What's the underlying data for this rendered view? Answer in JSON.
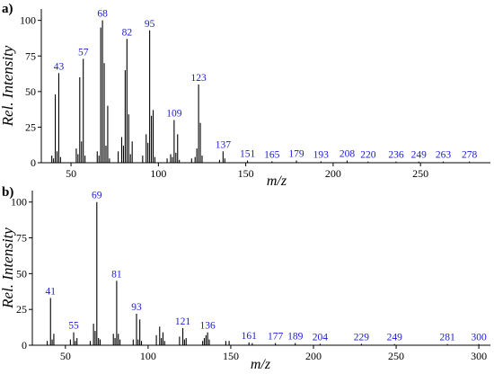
{
  "chart_data": [
    {
      "panel": "a)",
      "type": "bar",
      "ylabel": "Rel. Intensity",
      "xlabel": "m/z",
      "xlim": [
        33,
        290
      ],
      "ylim": [
        0,
        108
      ],
      "xticks": [
        50,
        100,
        150,
        200,
        250
      ],
      "yticks": [
        0,
        25,
        50,
        75,
        100
      ],
      "grid": false,
      "peaks": [
        {
          "x": 39,
          "y": 5
        },
        {
          "x": 40,
          "y": 3
        },
        {
          "x": 41,
          "y": 48
        },
        {
          "x": 42,
          "y": 8
        },
        {
          "x": 43,
          "y": 63
        },
        {
          "x": 44,
          "y": 4
        },
        {
          "x": 53,
          "y": 10
        },
        {
          "x": 54,
          "y": 6
        },
        {
          "x": 55,
          "y": 60
        },
        {
          "x": 56,
          "y": 15
        },
        {
          "x": 57,
          "y": 73
        },
        {
          "x": 58,
          "y": 5
        },
        {
          "x": 65,
          "y": 8
        },
        {
          "x": 66,
          "y": 5
        },
        {
          "x": 67,
          "y": 95
        },
        {
          "x": 68,
          "y": 100
        },
        {
          "x": 69,
          "y": 70
        },
        {
          "x": 70,
          "y": 12
        },
        {
          "x": 71,
          "y": 40
        },
        {
          "x": 72,
          "y": 3
        },
        {
          "x": 77,
          "y": 8
        },
        {
          "x": 79,
          "y": 18
        },
        {
          "x": 80,
          "y": 12
        },
        {
          "x": 81,
          "y": 65
        },
        {
          "x": 82,
          "y": 87
        },
        {
          "x": 83,
          "y": 34
        },
        {
          "x": 84,
          "y": 6
        },
        {
          "x": 85,
          "y": 15
        },
        {
          "x": 91,
          "y": 5
        },
        {
          "x": 93,
          "y": 20
        },
        {
          "x": 94,
          "y": 14
        },
        {
          "x": 95,
          "y": 93
        },
        {
          "x": 96,
          "y": 33
        },
        {
          "x": 97,
          "y": 37
        },
        {
          "x": 98,
          "y": 4
        },
        {
          "x": 105,
          "y": 3
        },
        {
          "x": 107,
          "y": 6
        },
        {
          "x": 108,
          "y": 4
        },
        {
          "x": 109,
          "y": 30
        },
        {
          "x": 110,
          "y": 7
        },
        {
          "x": 111,
          "y": 20
        },
        {
          "x": 112,
          "y": 2
        },
        {
          "x": 119,
          "y": 3
        },
        {
          "x": 121,
          "y": 4
        },
        {
          "x": 122,
          "y": 10
        },
        {
          "x": 123,
          "y": 55
        },
        {
          "x": 124,
          "y": 28
        },
        {
          "x": 125,
          "y": 5
        },
        {
          "x": 135,
          "y": 2
        },
        {
          "x": 137,
          "y": 8
        },
        {
          "x": 138,
          "y": 3
        },
        {
          "x": 151,
          "y": 1.5
        },
        {
          "x": 165,
          "y": 1
        },
        {
          "x": 179,
          "y": 1.5
        },
        {
          "x": 193,
          "y": 1
        },
        {
          "x": 208,
          "y": 1.5
        },
        {
          "x": 220,
          "y": 0.8
        },
        {
          "x": 236,
          "y": 0.8
        },
        {
          "x": 249,
          "y": 0.8
        },
        {
          "x": 263,
          "y": 0.8
        },
        {
          "x": 278,
          "y": 0.8
        }
      ],
      "labels": [
        {
          "text": "43",
          "x": 43,
          "y": 63
        },
        {
          "text": "57",
          "x": 57,
          "y": 73
        },
        {
          "text": "68",
          "x": 68,
          "y": 100
        },
        {
          "text": "82",
          "x": 82,
          "y": 87
        },
        {
          "text": "95",
          "x": 95,
          "y": 93
        },
        {
          "text": "109",
          "x": 109,
          "y": 30
        },
        {
          "text": "123",
          "x": 123,
          "y": 55
        },
        {
          "text": "137",
          "x": 137,
          "y": 8
        },
        {
          "text": "151",
          "x": 151,
          "y": 1.5
        },
        {
          "text": "165",
          "x": 165,
          "y": 1
        },
        {
          "text": "179",
          "x": 179,
          "y": 1.5
        },
        {
          "text": "193",
          "x": 193,
          "y": 1
        },
        {
          "text": "208",
          "x": 208,
          "y": 1.5
        },
        {
          "text": "220",
          "x": 220,
          "y": 0.8
        },
        {
          "text": "236",
          "x": 236,
          "y": 0.8
        },
        {
          "text": "249",
          "x": 249,
          "y": 0.8
        },
        {
          "text": "263",
          "x": 263,
          "y": 0.8
        },
        {
          "text": "278",
          "x": 278,
          "y": 0.8
        }
      ]
    },
    {
      "panel": "b)",
      "type": "bar",
      "ylabel": "Rel. Intensity",
      "xlabel": "m/z",
      "xlim": [
        30,
        307
      ],
      "ylim": [
        0,
        108
      ],
      "xticks": [
        50,
        100,
        150,
        200,
        250,
        300
      ],
      "yticks": [
        0,
        25,
        50,
        75,
        100
      ],
      "grid": false,
      "peaks": [
        {
          "x": 39,
          "y": 3
        },
        {
          "x": 41,
          "y": 33
        },
        {
          "x": 42,
          "y": 4
        },
        {
          "x": 43,
          "y": 8
        },
        {
          "x": 53,
          "y": 4
        },
        {
          "x": 55,
          "y": 9
        },
        {
          "x": 56,
          "y": 3
        },
        {
          "x": 57,
          "y": 5
        },
        {
          "x": 65,
          "y": 3
        },
        {
          "x": 67,
          "y": 15
        },
        {
          "x": 68,
          "y": 10
        },
        {
          "x": 69,
          "y": 100
        },
        {
          "x": 70,
          "y": 5
        },
        {
          "x": 71,
          "y": 4
        },
        {
          "x": 79,
          "y": 8
        },
        {
          "x": 80,
          "y": 5
        },
        {
          "x": 81,
          "y": 45
        },
        {
          "x": 82,
          "y": 8
        },
        {
          "x": 83,
          "y": 4
        },
        {
          "x": 91,
          "y": 4
        },
        {
          "x": 93,
          "y": 22
        },
        {
          "x": 94,
          "y": 4
        },
        {
          "x": 95,
          "y": 18
        },
        {
          "x": 96,
          "y": 3
        },
        {
          "x": 105,
          "y": 7
        },
        {
          "x": 107,
          "y": 13
        },
        {
          "x": 108,
          "y": 5
        },
        {
          "x": 109,
          "y": 9
        },
        {
          "x": 110,
          "y": 3
        },
        {
          "x": 119,
          "y": 6
        },
        {
          "x": 121,
          "y": 12
        },
        {
          "x": 122,
          "y": 4
        },
        {
          "x": 123,
          "y": 5
        },
        {
          "x": 133,
          "y": 3
        },
        {
          "x": 134,
          "y": 5
        },
        {
          "x": 135,
          "y": 7
        },
        {
          "x": 136,
          "y": 9
        },
        {
          "x": 137,
          "y": 4
        },
        {
          "x": 147,
          "y": 3
        },
        {
          "x": 149,
          "y": 3
        },
        {
          "x": 161,
          "y": 2
        },
        {
          "x": 163,
          "y": 1.5
        },
        {
          "x": 177,
          "y": 1.5
        },
        {
          "x": 189,
          "y": 1.5
        },
        {
          "x": 204,
          "y": 1
        },
        {
          "x": 229,
          "y": 1
        },
        {
          "x": 249,
          "y": 0.8
        },
        {
          "x": 281,
          "y": 0.8
        },
        {
          "x": 300,
          "y": 0.8
        }
      ],
      "labels": [
        {
          "text": "41",
          "x": 41,
          "y": 33
        },
        {
          "text": "55",
          "x": 55,
          "y": 9
        },
        {
          "text": "69",
          "x": 69,
          "y": 100
        },
        {
          "text": "81",
          "x": 81,
          "y": 45
        },
        {
          "text": "93",
          "x": 93,
          "y": 22
        },
        {
          "text": "121",
          "x": 121,
          "y": 12
        },
        {
          "text": "136",
          "x": 136,
          "y": 9
        },
        {
          "text": "161",
          "x": 161,
          "y": 2
        },
        {
          "text": "177",
          "x": 177,
          "y": 1.5
        },
        {
          "text": "189",
          "x": 189,
          "y": 1.5
        },
        {
          "text": "204",
          "x": 204,
          "y": 1
        },
        {
          "text": "229",
          "x": 229,
          "y": 1
        },
        {
          "text": "249",
          "x": 249,
          "y": 0.8
        },
        {
          "text": "281",
          "x": 281,
          "y": 0.8
        },
        {
          "text": "300",
          "x": 300,
          "y": 0.8
        }
      ]
    }
  ]
}
